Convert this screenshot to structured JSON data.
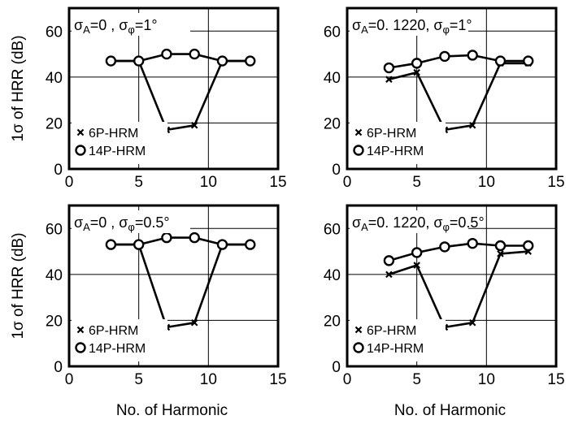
{
  "chart_data": [
    {
      "type": "line",
      "title": "σA=0 , σφ=1°",
      "title_parts": {
        "a": "σ",
        "a_sub": "A",
        "b": "=0 , σ",
        "b_sub": "φ",
        "c": "=1°"
      },
      "ylabel": "1σ of HRR (dB)",
      "xlabel": "",
      "xlim": [
        0,
        15
      ],
      "ylim": [
        0,
        70
      ],
      "xticks": [
        "0",
        "5",
        "10",
        "15"
      ],
      "yticks": [
        "0",
        "20",
        "40",
        "60"
      ],
      "grid": true,
      "legend": "bottom-left",
      "series": [
        {
          "name": "6P-HRM",
          "marker": "x",
          "x": [
            3,
            5,
            7,
            9,
            11,
            13
          ],
          "y": [
            47,
            47,
            17,
            19,
            47,
            47
          ]
        },
        {
          "name": "14P-HRM",
          "marker": "o",
          "x": [
            3,
            5,
            7,
            9,
            11,
            13
          ],
          "y": [
            47,
            47,
            50,
            50,
            47,
            47
          ]
        }
      ]
    },
    {
      "type": "line",
      "title": "σA=0. 1220, σφ=1°",
      "title_parts": {
        "a": "σ",
        "a_sub": "A",
        "b": "=0. 1220, σ",
        "b_sub": "φ",
        "c": "=1°"
      },
      "ylabel": "",
      "xlabel": "",
      "xlim": [
        0,
        15
      ],
      "ylim": [
        0,
        70
      ],
      "xticks": [
        "0",
        "5",
        "10",
        "15"
      ],
      "yticks": [
        "0",
        "20",
        "40",
        "60"
      ],
      "grid": true,
      "legend": "bottom-left",
      "series": [
        {
          "name": "6P-HRM",
          "marker": "x",
          "x": [
            3,
            5,
            7,
            9,
            11,
            13
          ],
          "y": [
            39,
            42,
            17,
            19,
            46,
            46
          ]
        },
        {
          "name": "14P-HRM",
          "marker": "o",
          "x": [
            3,
            5,
            7,
            9,
            11,
            13
          ],
          "y": [
            44,
            46,
            49,
            49.5,
            47,
            47
          ]
        }
      ]
    },
    {
      "type": "line",
      "title": "σA=0 , σφ=0.5°",
      "title_parts": {
        "a": "σ",
        "a_sub": "A",
        "b": "=0 , σ",
        "b_sub": "φ",
        "c": "=0.5°"
      },
      "ylabel": "1σ of HRR (dB)",
      "xlabel": "No. of Harmonic",
      "xlim": [
        0,
        15
      ],
      "ylim": [
        0,
        70
      ],
      "xticks": [
        "0",
        "5",
        "10",
        "15"
      ],
      "yticks": [
        "0",
        "20",
        "40",
        "60"
      ],
      "grid": true,
      "legend": "bottom-left",
      "series": [
        {
          "name": "6P-HRM",
          "marker": "x",
          "x": [
            3,
            5,
            7,
            9,
            11,
            13
          ],
          "y": [
            53,
            53,
            17,
            19,
            53,
            53
          ]
        },
        {
          "name": "14P-HRM",
          "marker": "o",
          "x": [
            3,
            5,
            7,
            9,
            11,
            13
          ],
          "y": [
            53,
            53,
            56,
            56,
            53,
            53
          ]
        }
      ]
    },
    {
      "type": "line",
      "title": "σA=0. 1220, σφ=0.5°",
      "title_parts": {
        "a": "σ",
        "a_sub": "A",
        "b": "=0. 1220, σ",
        "b_sub": "φ",
        "c": "=0.5°"
      },
      "ylabel": "",
      "xlabel": "No. of Harmonic",
      "xlim": [
        0,
        15
      ],
      "ylim": [
        0,
        70
      ],
      "xticks": [
        "0",
        "5",
        "10",
        "15"
      ],
      "yticks": [
        "0",
        "20",
        "40",
        "60"
      ],
      "grid": true,
      "legend": "bottom-left",
      "series": [
        {
          "name": "6P-HRM",
          "marker": "x",
          "x": [
            3,
            5,
            7,
            9,
            11,
            13
          ],
          "y": [
            40,
            44,
            17,
            19,
            49,
            50
          ]
        },
        {
          "name": "14P-HRM",
          "marker": "o",
          "x": [
            3,
            5,
            7,
            9,
            11,
            13
          ],
          "y": [
            46,
            49.5,
            52,
            53.5,
            52.5,
            52.5
          ]
        }
      ]
    }
  ]
}
